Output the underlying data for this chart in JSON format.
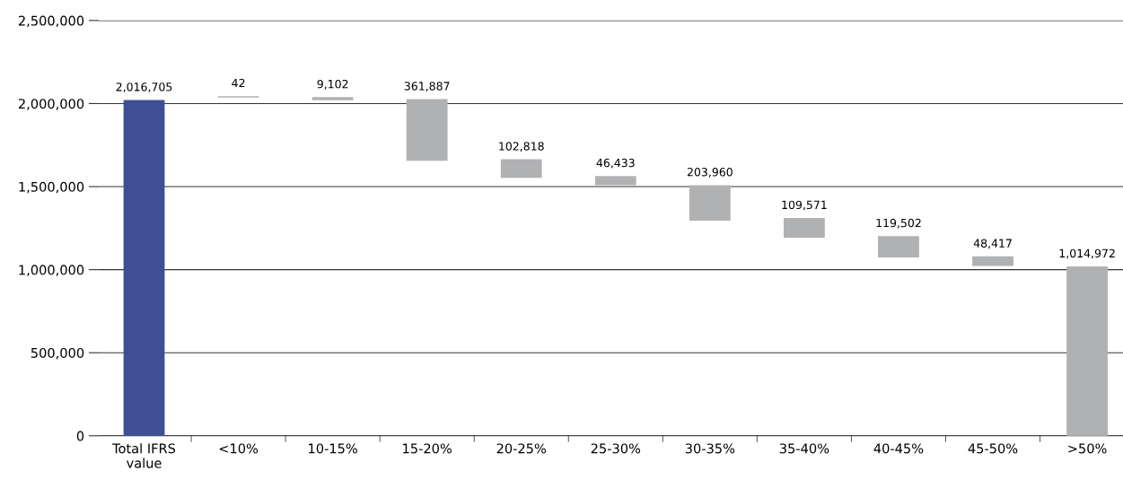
{
  "chart_data": {
    "type": "bar",
    "categories": [
      "Total IFRS\nvalue",
      "<10%",
      "10-15%",
      "15-20%",
      "20-25%",
      "25-30%",
      "30-35%",
      "35-40%",
      "40-45%",
      "45-50%",
      ">50%"
    ],
    "values": [
      2016705,
      42,
      9102,
      361887,
      102818,
      46433,
      203960,
      109571,
      119502,
      48417,
      1014972
    ],
    "base": [
      0,
      2040000,
      2025000,
      1660000,
      1557000,
      1513000,
      1300000,
      1197000,
      1078000,
      1027000,
      0
    ],
    "colors": [
      "#3f4f96",
      "#b0b1b3",
      "#b0b1b3",
      "#b0b1b3",
      "#b0b1b3",
      "#b0b1b3",
      "#b0b1b3",
      "#b0b1b3",
      "#b0b1b3",
      "#b0b1b3",
      "#b0b1b3"
    ],
    "ylim": [
      0,
      2500000
    ],
    "yticks": [
      {
        "value": 0,
        "label": "0"
      },
      {
        "value": 500000,
        "label": "500,000"
      },
      {
        "value": 1000000,
        "label": "1,000,000"
      },
      {
        "value": 1500000,
        "label": "1,500,000"
      },
      {
        "value": 2000000,
        "label": "2,000,000"
      },
      {
        "value": 2500000,
        "label": "2,500,000"
      }
    ],
    "grid": "y",
    "value_labels": [
      "2,016,705",
      "42",
      "9,102",
      "361,887",
      "102,818",
      "46,433",
      "203,960",
      "109,571",
      "119,502",
      "48,417",
      "1,014,972"
    ]
  }
}
